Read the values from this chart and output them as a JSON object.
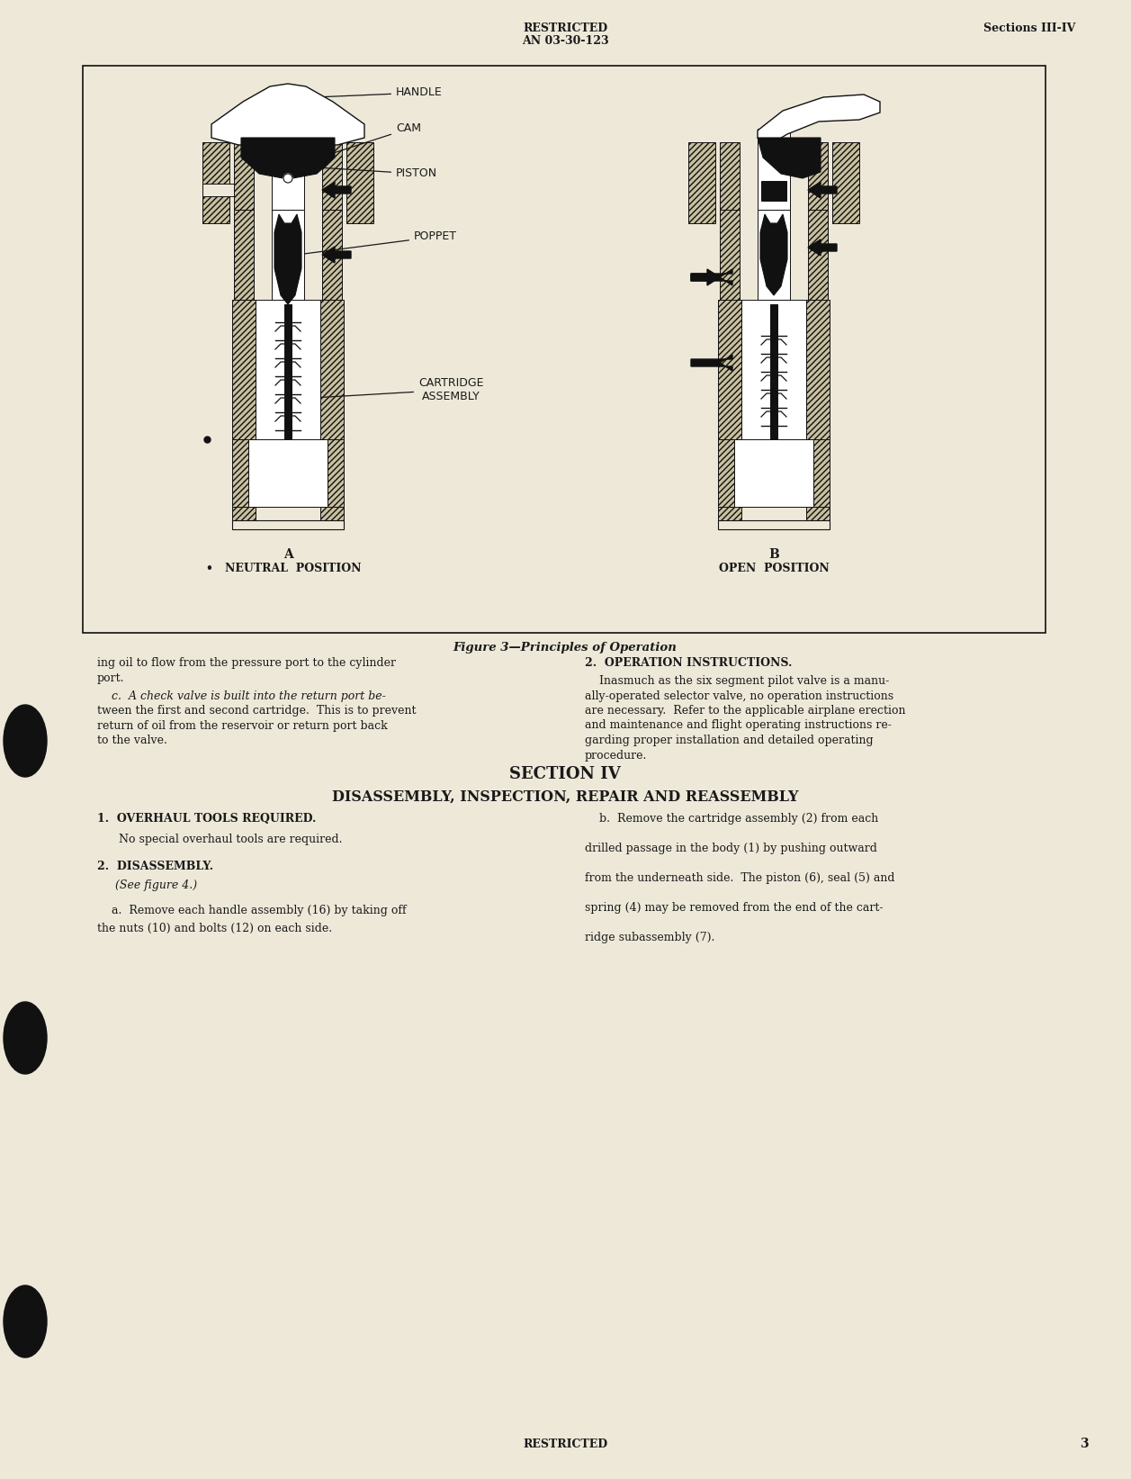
{
  "page_bg": "#EDE8D8",
  "text_color": "#1a1a1a",
  "header_center_1": "RESTRICTED",
  "header_center_2": "AN 03-30-123",
  "header_right": "Sections III-IV",
  "figure_caption": "Figure 3—Principles of Operation",
  "label_handle": "HANDLE",
  "label_cam": "CAM",
  "label_piston": "PISTON",
  "label_poppet": "POPPET",
  "label_cartridge_1": "CARTRIDGE",
  "label_cartridge_2": "ASSEMBLY",
  "label_A": "A",
  "label_A_sub": "•   NEUTRAL  POSITION",
  "label_B": "B",
  "label_B_sub": "OPEN  POSITION",
  "section_number": "SECTION IV",
  "section_title": "DISASSEMBLY, INSPECTION, REPAIR AND REASSEMBLY",
  "body_col1_line1": "ing oil to flow from the pressure port to the cylinder",
  "body_col1_line2": "port.",
  "body_col1_para2_line1": "    c.  A check valve is built into the return port be-",
  "body_col1_para2_line2": "tween the first and second cartridge.  This is to prevent",
  "body_col1_para2_line3": "return of oil from the reservoir or return port back",
  "body_col1_para2_line4": "to the valve.",
  "body_col2_heading": "2.  OPERATION INSTRUCTIONS.",
  "body_col2_para_line1": "    Inasmuch as the six segment pilot valve is a manu-",
  "body_col2_para_line2": "ally-operated selector valve, no operation instructions",
  "body_col2_para_line3": "are necessary.  Refer to the applicable airplane erection",
  "body_col2_para_line4": "and maintenance and flight operating instructions re-",
  "body_col2_para_line5": "garding proper installation and detailed operating",
  "body_col2_para_line6": "procedure.",
  "s4_col1_h1": "1.  OVERHAUL TOOLS REQUIRED.",
  "s4_col1_p1": "   No special overhaul tools are required.",
  "s4_col1_h2": "2.  DISASSEMBLY.",
  "s4_col1_sub2": "(See figure 4.)",
  "s4_col1_p2_line1": "    a.  Remove each handle assembly (16) by taking off",
  "s4_col1_p2_line2": "the nuts (10) and bolts (12) on each side.",
  "s4_col2_line1": "    b.  Remove the cartridge assembly (2) from each",
  "s4_col2_line2": "",
  "s4_col2_line3": "drilled passage in the body (1) by pushing outward",
  "s4_col2_line4": "",
  "s4_col2_line5": "from the underneath side.  The piston (6), seal (5) and",
  "s4_col2_line6": "",
  "s4_col2_line7": "spring (4) may be removed from the end of the cart-",
  "s4_col2_line8": "",
  "s4_col2_line9": "ridge subassembly (7).",
  "footer_text": "RESTRICTED",
  "page_number": "3",
  "black_color": "#111111",
  "hatch_fc": "#C8C0A0"
}
